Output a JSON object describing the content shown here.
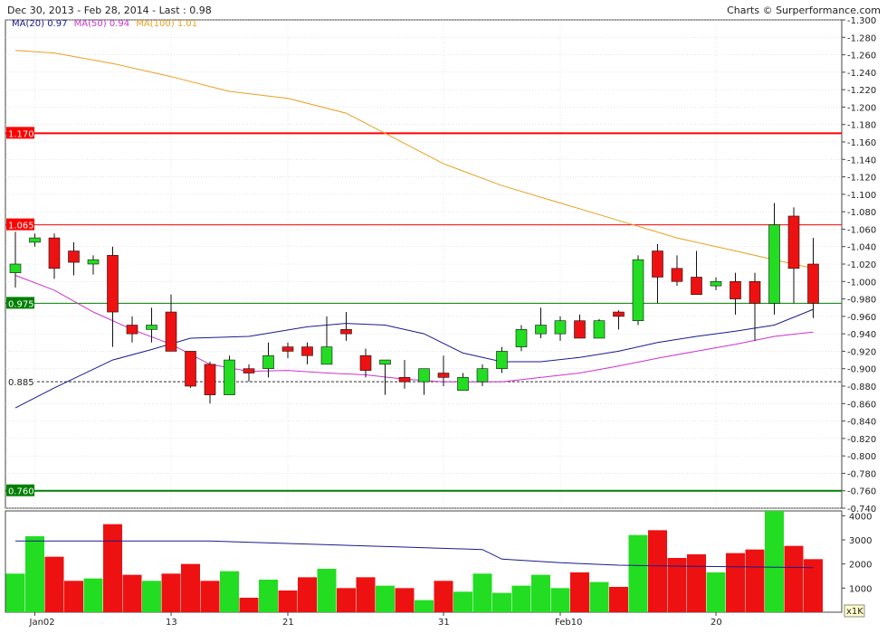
{
  "header": {
    "range": "Dec 30, 2013 - Feb 28, 2014 - Last : 0.98",
    "credit": "Charts © Surperformance.com"
  },
  "legend": {
    "ma20_label": "MA(20)",
    "ma20_value": "0.97",
    "ma50_label": "MA(50)",
    "ma50_value": "0.94",
    "ma100_label": "MA(100)",
    "ma100_value": "1.01"
  },
  "colors": {
    "up": "#22dd22",
    "down": "#ee1111",
    "ma20": "#1a1a8c",
    "ma50": "#cc33cc",
    "ma100": "#e8a020",
    "resistance": "#ff0000",
    "support": "#008000",
    "grid": "#d8d8d8"
  },
  "chart_data": {
    "type": "candlestick",
    "y_axis": {
      "min": 0.74,
      "max": 1.3,
      "step": 0.02
    },
    "volume_axis": {
      "min": 0,
      "max": 4200,
      "ticks": [
        1000,
        2000,
        3000,
        4000
      ],
      "unit_label": "x1K"
    },
    "x_labels": [
      {
        "label": "Jan02",
        "index": 1
      },
      {
        "label": "13",
        "index": 8
      },
      {
        "label": "21",
        "index": 14
      },
      {
        "label": "31",
        "index": 22
      },
      {
        "label": "Feb10",
        "index": 28
      },
      {
        "label": "20",
        "index": 36
      }
    ],
    "levels": [
      {
        "value": 1.17,
        "label": "1.170",
        "kind": "resistance",
        "style": "solid-thick"
      },
      {
        "value": 1.065,
        "label": "1.065",
        "kind": "resistance",
        "style": "solid"
      },
      {
        "value": 0.975,
        "label": "0.975",
        "kind": "support",
        "style": "solid"
      },
      {
        "value": 0.885,
        "label": "0.885",
        "kind": "neutral",
        "style": "dashed"
      },
      {
        "value": 0.76,
        "label": "0.760",
        "kind": "support",
        "style": "solid-thick"
      }
    ],
    "candles": [
      {
        "o": 1.01,
        "h": 1.057,
        "l": 0.993,
        "c": 1.02,
        "v": 1600
      },
      {
        "o": 1.045,
        "h": 1.055,
        "l": 1.04,
        "c": 1.05,
        "v": 3150
      },
      {
        "o": 1.05,
        "h": 1.055,
        "l": 1.003,
        "c": 1.015,
        "v": 2300
      },
      {
        "o": 1.035,
        "h": 1.045,
        "l": 1.007,
        "c": 1.022,
        "v": 1300
      },
      {
        "o": 1.02,
        "h": 1.03,
        "l": 1.008,
        "c": 1.025,
        "v": 1400
      },
      {
        "o": 1.03,
        "h": 1.04,
        "l": 0.925,
        "c": 0.965,
        "v": 3650
      },
      {
        "o": 0.95,
        "h": 0.96,
        "l": 0.93,
        "c": 0.94,
        "v": 1550
      },
      {
        "o": 0.945,
        "h": 0.97,
        "l": 0.93,
        "c": 0.95,
        "v": 1300
      },
      {
        "o": 0.965,
        "h": 0.985,
        "l": 0.92,
        "c": 0.92,
        "v": 1600
      },
      {
        "o": 0.92,
        "h": 0.92,
        "l": 0.878,
        "c": 0.88,
        "v": 2000
      },
      {
        "o": 0.905,
        "h": 0.908,
        "l": 0.86,
        "c": 0.87,
        "v": 1300
      },
      {
        "o": 0.87,
        "h": 0.915,
        "l": 0.87,
        "c": 0.91,
        "v": 1700
      },
      {
        "o": 0.9,
        "h": 0.905,
        "l": 0.885,
        "c": 0.895,
        "v": 600
      },
      {
        "o": 0.9,
        "h": 0.93,
        "l": 0.89,
        "c": 0.915,
        "v": 1350
      },
      {
        "o": 0.925,
        "h": 0.93,
        "l": 0.912,
        "c": 0.92,
        "v": 900
      },
      {
        "o": 0.925,
        "h": 0.93,
        "l": 0.905,
        "c": 0.915,
        "v": 1450
      },
      {
        "o": 0.905,
        "h": 0.96,
        "l": 0.905,
        "c": 0.925,
        "v": 1800
      },
      {
        "o": 0.945,
        "h": 0.965,
        "l": 0.932,
        "c": 0.94,
        "v": 1000
      },
      {
        "o": 0.915,
        "h": 0.923,
        "l": 0.89,
        "c": 0.898,
        "v": 1450
      },
      {
        "o": 0.905,
        "h": 0.91,
        "l": 0.87,
        "c": 0.91,
        "v": 1100
      },
      {
        "o": 0.89,
        "h": 0.91,
        "l": 0.877,
        "c": 0.885,
        "v": 1000
      },
      {
        "o": 0.885,
        "h": 0.9,
        "l": 0.87,
        "c": 0.9,
        "v": 500
      },
      {
        "o": 0.895,
        "h": 0.915,
        "l": 0.88,
        "c": 0.89,
        "v": 1300
      },
      {
        "o": 0.875,
        "h": 0.895,
        "l": 0.875,
        "c": 0.89,
        "v": 850
      },
      {
        "o": 0.885,
        "h": 0.905,
        "l": 0.88,
        "c": 0.9,
        "v": 1600
      },
      {
        "o": 0.9,
        "h": 0.925,
        "l": 0.895,
        "c": 0.92,
        "v": 800
      },
      {
        "o": 0.925,
        "h": 0.95,
        "l": 0.92,
        "c": 0.945,
        "v": 1100
      },
      {
        "o": 0.94,
        "h": 0.97,
        "l": 0.935,
        "c": 0.95,
        "v": 1550
      },
      {
        "o": 0.94,
        "h": 0.96,
        "l": 0.932,
        "c": 0.955,
        "v": 1000
      },
      {
        "o": 0.955,
        "h": 0.962,
        "l": 0.935,
        "c": 0.935,
        "v": 1650
      },
      {
        "o": 0.935,
        "h": 0.957,
        "l": 0.935,
        "c": 0.955,
        "v": 1250
      },
      {
        "o": 0.965,
        "h": 0.967,
        "l": 0.945,
        "c": 0.96,
        "v": 1050
      },
      {
        "o": 0.955,
        "h": 1.03,
        "l": 0.95,
        "c": 1.025,
        "v": 3200
      },
      {
        "o": 1.035,
        "h": 1.043,
        "l": 0.975,
        "c": 1.005,
        "v": 3400
      },
      {
        "o": 1.015,
        "h": 1.03,
        "l": 0.995,
        "c": 1.0,
        "v": 2250
      },
      {
        "o": 1.005,
        "h": 1.035,
        "l": 0.985,
        "c": 0.985,
        "v": 2400
      },
      {
        "o": 0.995,
        "h": 1.005,
        "l": 0.99,
        "c": 1.0,
        "v": 1650
      },
      {
        "o": 1.0,
        "h": 1.01,
        "l": 0.962,
        "c": 0.98,
        "v": 2450
      },
      {
        "o": 1.0,
        "h": 1.01,
        "l": 0.932,
        "c": 0.975,
        "v": 2600
      },
      {
        "o": 0.975,
        "h": 1.09,
        "l": 0.962,
        "c": 1.065,
        "v": 4200
      },
      {
        "o": 1.075,
        "h": 1.085,
        "l": 0.975,
        "c": 1.015,
        "v": 2750
      },
      {
        "o": 1.02,
        "h": 1.05,
        "l": 0.958,
        "c": 0.975,
        "v": 2200
      }
    ],
    "ma20": [
      [
        0,
        0.855
      ],
      [
        2,
        0.878
      ],
      [
        5,
        0.91
      ],
      [
        7,
        0.922
      ],
      [
        9,
        0.935
      ],
      [
        12,
        0.937
      ],
      [
        15,
        0.948
      ],
      [
        17,
        0.952
      ],
      [
        19,
        0.95
      ],
      [
        21,
        0.94
      ],
      [
        23,
        0.918
      ],
      [
        25,
        0.908
      ],
      [
        27,
        0.908
      ],
      [
        29,
        0.913
      ],
      [
        31,
        0.92
      ],
      [
        33,
        0.93
      ],
      [
        35,
        0.937
      ],
      [
        37,
        0.943
      ],
      [
        39,
        0.95
      ],
      [
        41,
        0.968
      ]
    ],
    "ma50": [
      [
        0,
        1.007
      ],
      [
        2,
        0.99
      ],
      [
        4,
        0.965
      ],
      [
        6,
        0.945
      ],
      [
        8,
        0.928
      ],
      [
        10,
        0.905
      ],
      [
        12,
        0.897
      ],
      [
        14,
        0.898
      ],
      [
        16,
        0.895
      ],
      [
        18,
        0.893
      ],
      [
        20,
        0.888
      ],
      [
        22,
        0.885
      ],
      [
        25,
        0.885
      ],
      [
        27,
        0.89
      ],
      [
        29,
        0.895
      ],
      [
        31,
        0.903
      ],
      [
        33,
        0.912
      ],
      [
        35,
        0.92
      ],
      [
        37,
        0.928
      ],
      [
        39,
        0.937
      ],
      [
        41,
        0.942
      ]
    ],
    "ma100": [
      [
        0,
        1.265
      ],
      [
        2,
        1.262
      ],
      [
        5,
        1.25
      ],
      [
        8,
        1.235
      ],
      [
        11,
        1.218
      ],
      [
        14,
        1.21
      ],
      [
        17,
        1.193
      ],
      [
        19,
        1.17
      ],
      [
        22,
        1.135
      ],
      [
        25,
        1.11
      ],
      [
        28,
        1.09
      ],
      [
        31,
        1.07
      ],
      [
        34,
        1.05
      ],
      [
        37,
        1.035
      ],
      [
        39,
        1.025
      ],
      [
        41,
        1.015
      ]
    ],
    "volume_ma": [
      [
        0,
        2950
      ],
      [
        10,
        2950
      ],
      [
        14,
        2850
      ],
      [
        20,
        2700
      ],
      [
        24,
        2600
      ],
      [
        25,
        2200
      ],
      [
        28,
        2050
      ],
      [
        31,
        1950
      ],
      [
        35,
        1900
      ],
      [
        41,
        1850
      ]
    ]
  }
}
